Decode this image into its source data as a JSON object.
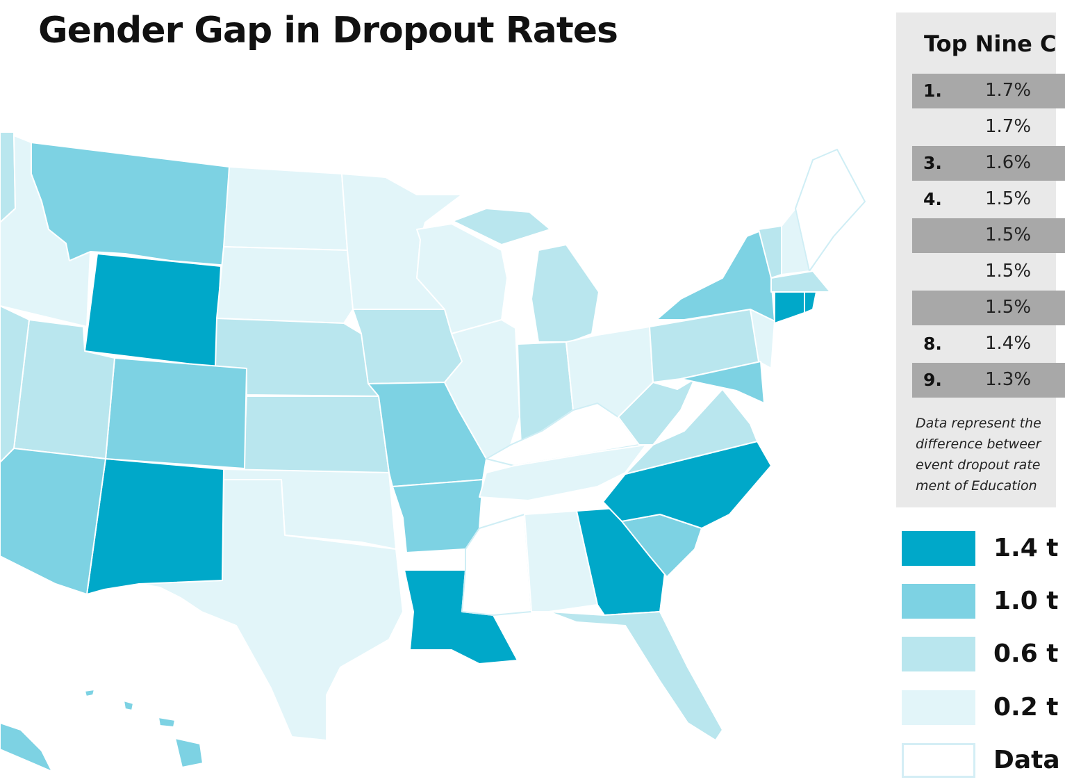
{
  "title": "Gender Gap in Dropout Rates",
  "panel": {
    "title": "Top Nine C",
    "rows": [
      {
        "rank": "1.",
        "value": "1.7%"
      },
      {
        "rank": "",
        "value": "1.7%"
      },
      {
        "rank": "3.",
        "value": "1.6%"
      },
      {
        "rank": "4.",
        "value": "1.5%"
      },
      {
        "rank": "",
        "value": "1.5%"
      },
      {
        "rank": "",
        "value": "1.5%"
      },
      {
        "rank": "",
        "value": "1.5%"
      },
      {
        "rank": "8.",
        "value": "1.4%"
      },
      {
        "rank": "9.",
        "value": "1.3%"
      }
    ],
    "note": [
      "Data represent the",
      "difference betweer",
      "event dropout rate",
      "ment of Education"
    ]
  },
  "legend": [
    {
      "label": "1.4 t",
      "color": "#00a8c9"
    },
    {
      "label": "1.0 t",
      "color": "#7dd2e3"
    },
    {
      "label": "0.6 t",
      "color": "#b9e6ee"
    },
    {
      "label": "0.2 t",
      "color": "#e2f5f9"
    },
    {
      "label": "Data",
      "color": "#ffffff"
    }
  ],
  "map": {
    "level_colors": [
      "#ffffff",
      "#e2f5f9",
      "#b9e6ee",
      "#7dd2e3",
      "#00a8c9"
    ],
    "levels": {
      "WA": 2,
      "ID": 1,
      "MT": 3,
      "WY": 4,
      "ND": 1,
      "SD": 1,
      "NE": 2,
      "KS": 2,
      "OK": 1,
      "TX": 1,
      "NM": 4,
      "CO": 3,
      "UT": 2,
      "AZ": 3,
      "NV": 2,
      "MN": 1,
      "IA": 2,
      "MO": 3,
      "AR": 3,
      "LA": 4,
      "WI": 1,
      "IL": 1,
      "MI": 2,
      "MIU": 2,
      "IN": 2,
      "OH": 1,
      "KY": 0,
      "TN": 1,
      "MS": 0,
      "AL": 1,
      "GA": 4,
      "FL": 2,
      "SC": 3,
      "NC": 4,
      "VA": 2,
      "WV": 2,
      "PA": 2,
      "NY": 3,
      "NJ": 1,
      "MD": 3,
      "VT": 2,
      "NH": 1,
      "ME": 0,
      "MA": 2,
      "CT": 4,
      "RI": 4,
      "AK": 3,
      "HI": 3
    }
  }
}
